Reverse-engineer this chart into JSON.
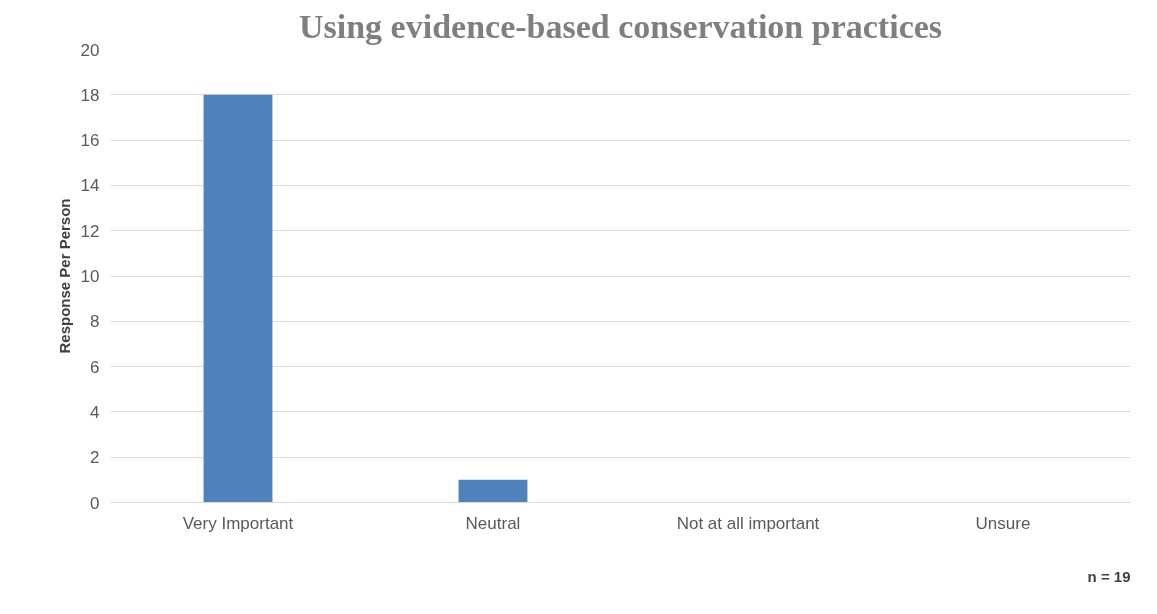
{
  "chart_data": {
    "type": "bar",
    "title": "Using evidence-based conservation practices",
    "ylabel": "Response Per Person",
    "categories": [
      "Very Important",
      "Neutral",
      "Not at all important",
      "Unsure"
    ],
    "values": [
      18,
      1,
      0,
      0
    ],
    "color": "#4f81bd",
    "ylim": [
      0,
      20
    ],
    "yticks": [
      0,
      2,
      4,
      6,
      8,
      10,
      12,
      14,
      16,
      18,
      20
    ],
    "grid": "y",
    "annotations": [
      "n = 19"
    ]
  }
}
